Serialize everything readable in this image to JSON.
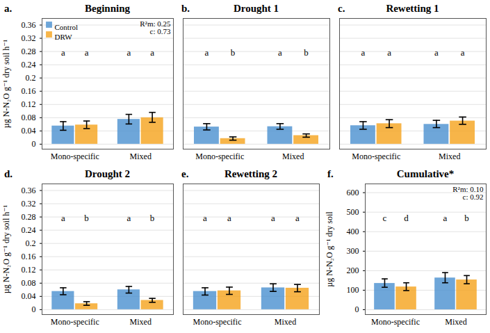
{
  "chart_data": [
    {
      "type": "bar",
      "panel": "a.",
      "title": "Beginning",
      "ylabel": "µg N-N₂O g⁻¹ dry soil h⁻¹",
      "categories": [
        "Mono-specific",
        "Mixed"
      ],
      "series": [
        {
          "name": "Control",
          "color": "#4a90d0",
          "values": [
            0.055,
            0.075
          ],
          "error_low": [
            0.042,
            0.061
          ],
          "error_high": [
            0.068,
            0.09
          ],
          "letters": [
            "a",
            "a"
          ]
        },
        {
          "name": "DRW",
          "color": "#f5a21b",
          "values": [
            0.058,
            0.08
          ],
          "error_low": [
            0.047,
            0.066
          ],
          "error_high": [
            0.07,
            0.096
          ],
          "letters": [
            "a",
            "a"
          ]
        }
      ],
      "stats": [
        "R²m: 0.25",
        "c: 0.73"
      ],
      "ylim": [
        -0.015,
        0.38
      ],
      "yticks": [
        0,
        0.04,
        0.08,
        0.12,
        0.16,
        0.2,
        0.24,
        0.28,
        0.32,
        0.36
      ],
      "grid": true,
      "legend": "top-left"
    },
    {
      "type": "bar",
      "panel": "b.",
      "title": "Drought 1",
      "categories": [
        "Mono-specific",
        "Mixed"
      ],
      "series": [
        {
          "color": "#4a90d0",
          "values": [
            0.052,
            0.053
          ],
          "error_low": [
            0.043,
            0.045
          ],
          "error_high": [
            0.062,
            0.062
          ],
          "letters": [
            "a",
            "a"
          ]
        },
        {
          "color": "#f5a21b",
          "values": [
            0.017,
            0.026
          ],
          "error_low": [
            0.012,
            0.021
          ],
          "error_high": [
            0.022,
            0.031
          ],
          "letters": [
            "b",
            "b"
          ]
        }
      ],
      "ylim": [
        -0.015,
        0.38
      ],
      "yticks": [
        0,
        0.04,
        0.08,
        0.12,
        0.16,
        0.2,
        0.24,
        0.28,
        0.32,
        0.36
      ],
      "grid": true,
      "tick_labels": "x"
    },
    {
      "type": "bar",
      "panel": "c.",
      "title": "Rewetting 1",
      "categories": [
        "Mono-specific",
        "Mixed"
      ],
      "series": [
        {
          "color": "#4a90d0",
          "values": [
            0.056,
            0.06
          ],
          "error_low": [
            0.045,
            0.05
          ],
          "error_high": [
            0.068,
            0.072
          ],
          "letters": [
            "a",
            "a"
          ]
        },
        {
          "color": "#f5a21b",
          "values": [
            0.062,
            0.07
          ],
          "error_low": [
            0.05,
            0.06
          ],
          "error_high": [
            0.074,
            0.082
          ],
          "letters": [
            "a",
            "a"
          ]
        }
      ],
      "ylim": [
        -0.015,
        0.38
      ],
      "yticks": [
        0,
        0.04,
        0.08,
        0.12,
        0.16,
        0.2,
        0.24,
        0.28,
        0.32,
        0.36
      ],
      "grid": true,
      "tick_labels": "x"
    },
    {
      "type": "bar",
      "panel": "d.",
      "title": "Drought 2",
      "ylabel": "µg N-N₂O g⁻¹ dry soil h⁻¹",
      "categories": [
        "Mono-specific",
        "Mixed"
      ],
      "series": [
        {
          "color": "#4a90d0",
          "values": [
            0.055,
            0.06
          ],
          "error_low": [
            0.045,
            0.05
          ],
          "error_high": [
            0.066,
            0.07
          ],
          "letters": [
            "a",
            "a"
          ]
        },
        {
          "color": "#f5a21b",
          "values": [
            0.018,
            0.028
          ],
          "error_low": [
            0.013,
            0.022
          ],
          "error_high": [
            0.024,
            0.034
          ],
          "letters": [
            "b",
            "b"
          ]
        }
      ],
      "ylim": [
        -0.015,
        0.38
      ],
      "yticks": [
        0,
        0.04,
        0.08,
        0.12,
        0.16,
        0.2,
        0.24,
        0.28,
        0.32,
        0.36
      ],
      "grid": true
    },
    {
      "type": "bar",
      "panel": "e.",
      "title": "Rewetting 2",
      "categories": [
        "Mono-specific",
        "Mixed"
      ],
      "series": [
        {
          "color": "#4a90d0",
          "values": [
            0.055,
            0.066
          ],
          "error_low": [
            0.044,
            0.055
          ],
          "error_high": [
            0.066,
            0.078
          ],
          "letters": [
            "a",
            "a"
          ]
        },
        {
          "color": "#f5a21b",
          "values": [
            0.057,
            0.065
          ],
          "error_low": [
            0.046,
            0.054
          ],
          "error_high": [
            0.068,
            0.076
          ],
          "letters": [
            "a",
            "a"
          ]
        }
      ],
      "ylim": [
        -0.015,
        0.38
      ],
      "yticks": [
        0,
        0.04,
        0.08,
        0.12,
        0.16,
        0.2,
        0.24,
        0.28,
        0.32,
        0.36
      ],
      "grid": true,
      "tick_labels": "x"
    },
    {
      "type": "bar",
      "panel": "f.",
      "title": "Cumulative*",
      "ylabel": "µg N-N₂O g⁻¹ dry soil",
      "categories": [
        "Mono-specific",
        "Mixed"
      ],
      "series": [
        {
          "color": "#4a90d0",
          "values": [
            135,
            163
          ],
          "error_low": [
            115,
            138
          ],
          "error_high": [
            158,
            190
          ],
          "letters": [
            "c",
            "a"
          ]
        },
        {
          "color": "#f5a21b",
          "values": [
            117,
            153
          ],
          "error_low": [
            98,
            133
          ],
          "error_high": [
            138,
            175
          ],
          "letters": [
            "d",
            "b"
          ]
        }
      ],
      "stats": [
        "R²m: 0.10",
        "c: 0.92"
      ],
      "ylim": [
        -25,
        645
      ],
      "yticks": [
        0,
        100,
        200,
        300,
        400,
        500,
        600
      ],
      "grid": true
    }
  ]
}
